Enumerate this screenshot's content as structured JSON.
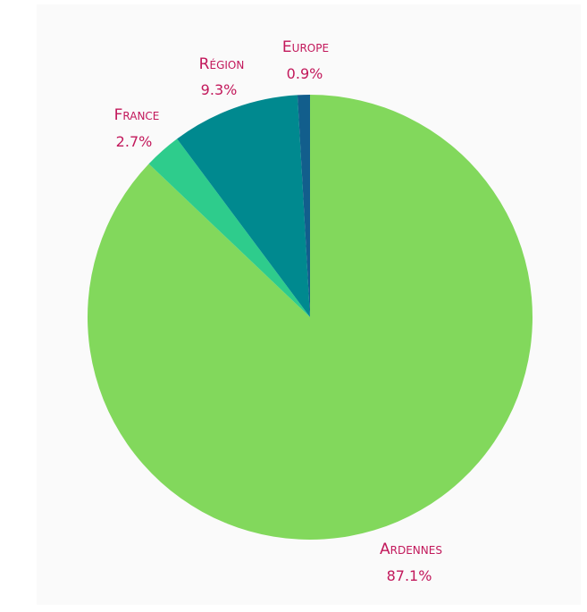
{
  "chart_data": {
    "type": "pie",
    "title": "",
    "slices": [
      {
        "label": "Ardennes",
        "value": 87.1,
        "display": "87.1%",
        "color": "#82d85c"
      },
      {
        "label": "France",
        "value": 2.7,
        "display": "2.7%",
        "color": "#2ecc8c"
      },
      {
        "label": "Région",
        "value": 9.3,
        "display": "9.3%",
        "color": "#00898f"
      },
      {
        "label": "Europe",
        "value": 0.9,
        "display": "0.9%",
        "color": "#125e8c"
      }
    ],
    "start_angle_deg": 0,
    "direction": "clockwise",
    "legend": "none",
    "label_color": "#c2185b"
  }
}
